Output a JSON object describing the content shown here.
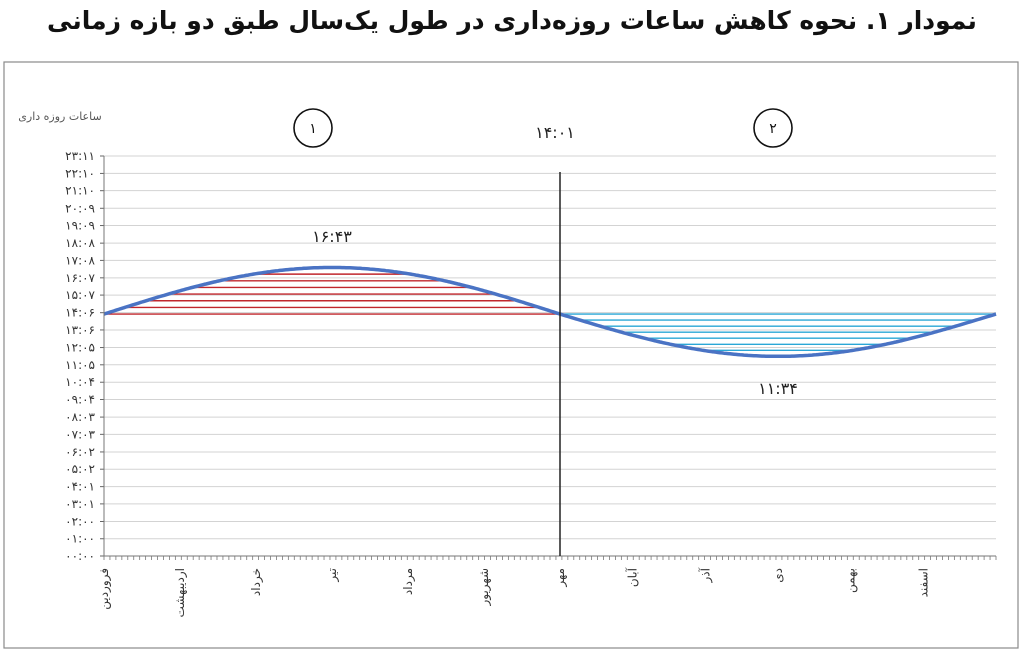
{
  "title": "نمودار ۱. نحوه کاهش ساعات روزه‌داری در طول یک‌سال طبق دو بازه زمانی",
  "chart_data": {
    "type": "area",
    "ylabel": "ساعات روزه داری",
    "y_ticks": [
      "۰۰:۰۰",
      "۰۱:۰۰",
      "۰۲:۰۰",
      "۰۳:۰۱",
      "۰۴:۰۱",
      "۰۵:۰۲",
      "۰۶:۰۲",
      "۰۷:۰۳",
      "۰۸:۰۳",
      "۰۹:۰۴",
      "۱۰:۰۴",
      "۱۱:۰۵",
      "۱۲:۰۵",
      "۱۳:۰۶",
      "۱۴:۰۶",
      "۱۵:۰۷",
      "۱۶:۰۷",
      "۱۷:۰۸",
      "۱۸:۰۸",
      "۱۹:۰۹",
      "۲۰:۰۹",
      "۲۱:۱۰",
      "۲۲:۱۰",
      "۲۳:۱۱"
    ],
    "y_tick_values": [
      0,
      1.0,
      2.0,
      3.02,
      4.02,
      5.03,
      6.03,
      7.05,
      8.05,
      9.07,
      10.07,
      11.08,
      12.08,
      13.1,
      14.1,
      15.12,
      16.12,
      17.13,
      18.13,
      19.15,
      20.15,
      21.17,
      22.17,
      23.18
    ],
    "months": [
      "فروردین",
      "اردیبهشت",
      "خرداد",
      "تیر",
      "مرداد",
      "شهریور",
      "مهر",
      "آبان",
      "آذر",
      "دی",
      "بهمن",
      "اسفند"
    ],
    "baseline_value": 14.02,
    "baseline_label": "۱۴:۰۱",
    "divider_month_index": 6,
    "regions": [
      {
        "label": "۱",
        "peak_label": "۱۶:۴۳",
        "peak_value": 16.72,
        "color": "#c0262c"
      },
      {
        "label": "۲",
        "peak_label": "۱۱:۳۴",
        "peak_value": 11.57,
        "color": "#2aa7d6"
      }
    ],
    "curve_color": "#4a73c4",
    "grid": true
  }
}
